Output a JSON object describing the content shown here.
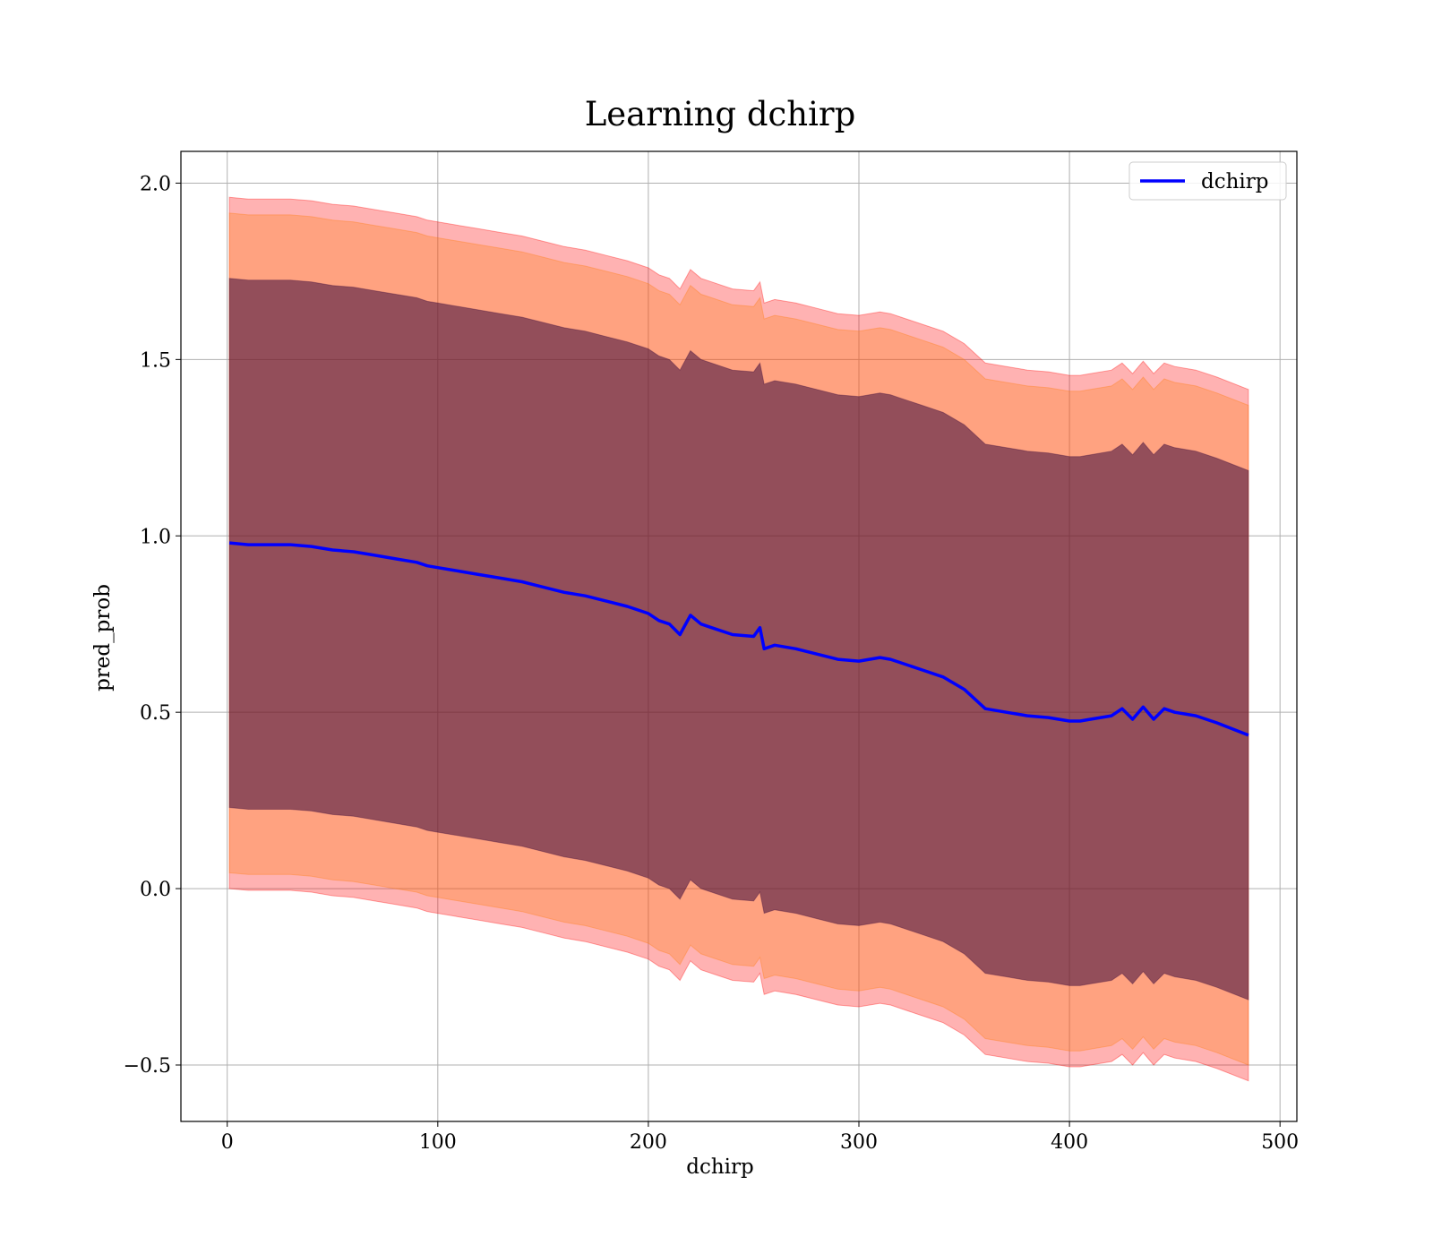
{
  "chart_data": {
    "type": "line",
    "title": "Learning dchirp",
    "xlabel": "dchirp",
    "ylabel": "pred_prob",
    "xlim": [
      -22,
      508
    ],
    "ylim": [
      -0.66,
      2.09
    ],
    "xticks": [
      0,
      100,
      200,
      300,
      400,
      500
    ],
    "xtick_labels": [
      "0",
      "100",
      "200",
      "300",
      "400",
      "500"
    ],
    "yticks": [
      -0.5,
      0.0,
      0.5,
      1.0,
      1.5,
      2.0
    ],
    "ytick_labels": [
      "−0.5",
      "0.0",
      "0.5",
      "1.0",
      "1.5",
      "2.0"
    ],
    "grid": true,
    "legend_position": "top-right",
    "series": [
      {
        "name": "dchirp",
        "color": "#0000ff",
        "x": [
          1,
          10,
          20,
          30,
          40,
          50,
          60,
          70,
          80,
          90,
          95,
          100,
          110,
          120,
          130,
          140,
          150,
          160,
          170,
          180,
          190,
          200,
          205,
          210,
          215,
          220,
          225,
          230,
          240,
          250,
          253,
          255,
          260,
          270,
          280,
          290,
          300,
          310,
          315,
          320,
          330,
          340,
          350,
          360,
          370,
          380,
          390,
          400,
          405,
          410,
          420,
          425,
          430,
          435,
          440,
          445,
          450,
          460,
          470,
          485
        ],
        "y": [
          0.98,
          0.975,
          0.975,
          0.975,
          0.97,
          0.96,
          0.955,
          0.945,
          0.935,
          0.925,
          0.915,
          0.91,
          0.9,
          0.89,
          0.88,
          0.87,
          0.855,
          0.84,
          0.83,
          0.815,
          0.8,
          0.78,
          0.76,
          0.75,
          0.72,
          0.775,
          0.75,
          0.74,
          0.72,
          0.715,
          0.74,
          0.68,
          0.69,
          0.68,
          0.665,
          0.65,
          0.645,
          0.655,
          0.65,
          0.64,
          0.62,
          0.6,
          0.565,
          0.51,
          0.5,
          0.49,
          0.485,
          0.475,
          0.475,
          0.48,
          0.49,
          0.51,
          0.48,
          0.515,
          0.48,
          0.51,
          0.5,
          0.49,
          0.47,
          0.435
        ]
      }
    ],
    "bands": [
      {
        "color": "#ff0000",
        "opacity": 0.3,
        "x": [
          1,
          10,
          20,
          30,
          40,
          50,
          60,
          70,
          80,
          90,
          95,
          100,
          110,
          120,
          130,
          140,
          150,
          160,
          170,
          180,
          190,
          200,
          205,
          210,
          215,
          220,
          225,
          230,
          240,
          250,
          253,
          255,
          260,
          270,
          280,
          290,
          300,
          310,
          315,
          320,
          330,
          340,
          350,
          360,
          370,
          380,
          390,
          400,
          405,
          410,
          420,
          425,
          430,
          435,
          440,
          445,
          450,
          460,
          470,
          485
        ],
        "upper": [
          1.96,
          1.955,
          1.955,
          1.955,
          1.95,
          1.94,
          1.935,
          1.925,
          1.915,
          1.905,
          1.895,
          1.89,
          1.88,
          1.87,
          1.86,
          1.85,
          1.835,
          1.82,
          1.81,
          1.795,
          1.78,
          1.76,
          1.74,
          1.73,
          1.7,
          1.755,
          1.73,
          1.72,
          1.7,
          1.695,
          1.72,
          1.66,
          1.67,
          1.66,
          1.645,
          1.63,
          1.625,
          1.635,
          1.63,
          1.62,
          1.6,
          1.58,
          1.545,
          1.49,
          1.48,
          1.47,
          1.465,
          1.455,
          1.455,
          1.46,
          1.47,
          1.49,
          1.46,
          1.495,
          1.46,
          1.49,
          1.48,
          1.47,
          1.45,
          1.415
        ],
        "lower": [
          0.0,
          -0.005,
          -0.005,
          -0.005,
          -0.01,
          -0.02,
          -0.025,
          -0.035,
          -0.045,
          -0.055,
          -0.065,
          -0.07,
          -0.08,
          -0.09,
          -0.1,
          -0.11,
          -0.125,
          -0.14,
          -0.15,
          -0.165,
          -0.18,
          -0.2,
          -0.22,
          -0.23,
          -0.26,
          -0.205,
          -0.23,
          -0.24,
          -0.26,
          -0.265,
          -0.24,
          -0.3,
          -0.29,
          -0.3,
          -0.315,
          -0.33,
          -0.335,
          -0.325,
          -0.33,
          -0.34,
          -0.36,
          -0.38,
          -0.415,
          -0.47,
          -0.48,
          -0.49,
          -0.495,
          -0.505,
          -0.505,
          -0.5,
          -0.49,
          -0.47,
          -0.5,
          -0.465,
          -0.5,
          -0.47,
          -0.48,
          -0.49,
          -0.51,
          -0.545
        ]
      },
      {
        "color": "#ff7f0e",
        "opacity": 0.3,
        "x": [
          1,
          10,
          20,
          30,
          40,
          50,
          60,
          70,
          80,
          90,
          95,
          100,
          110,
          120,
          130,
          140,
          150,
          160,
          170,
          180,
          190,
          200,
          205,
          210,
          215,
          220,
          225,
          230,
          240,
          250,
          253,
          255,
          260,
          270,
          280,
          290,
          300,
          310,
          315,
          320,
          330,
          340,
          350,
          360,
          370,
          380,
          390,
          400,
          405,
          410,
          420,
          425,
          430,
          435,
          440,
          445,
          450,
          460,
          470,
          485
        ],
        "upper": [
          1.915,
          1.91,
          1.91,
          1.91,
          1.905,
          1.895,
          1.89,
          1.88,
          1.87,
          1.86,
          1.85,
          1.845,
          1.835,
          1.825,
          1.815,
          1.805,
          1.79,
          1.775,
          1.765,
          1.75,
          1.735,
          1.715,
          1.695,
          1.685,
          1.655,
          1.71,
          1.685,
          1.675,
          1.655,
          1.65,
          1.675,
          1.615,
          1.625,
          1.615,
          1.6,
          1.585,
          1.58,
          1.59,
          1.585,
          1.575,
          1.555,
          1.535,
          1.5,
          1.445,
          1.435,
          1.425,
          1.42,
          1.41,
          1.41,
          1.415,
          1.425,
          1.445,
          1.415,
          1.45,
          1.415,
          1.445,
          1.435,
          1.425,
          1.405,
          1.37
        ],
        "lower": [
          0.045,
          0.04,
          0.04,
          0.04,
          0.035,
          0.025,
          0.02,
          0.01,
          0.0,
          -0.01,
          -0.02,
          -0.025,
          -0.035,
          -0.045,
          -0.055,
          -0.065,
          -0.08,
          -0.095,
          -0.105,
          -0.12,
          -0.135,
          -0.155,
          -0.175,
          -0.185,
          -0.215,
          -0.16,
          -0.185,
          -0.195,
          -0.215,
          -0.22,
          -0.195,
          -0.255,
          -0.245,
          -0.255,
          -0.27,
          -0.285,
          -0.29,
          -0.28,
          -0.285,
          -0.295,
          -0.315,
          -0.335,
          -0.37,
          -0.425,
          -0.435,
          -0.445,
          -0.45,
          -0.46,
          -0.46,
          -0.455,
          -0.445,
          -0.425,
          -0.455,
          -0.42,
          -0.455,
          -0.425,
          -0.435,
          -0.445,
          -0.465,
          -0.5
        ]
      },
      {
        "color": "#3a0a3a",
        "opacity": 0.55,
        "x": [
          1,
          10,
          20,
          30,
          40,
          50,
          60,
          70,
          80,
          90,
          95,
          100,
          110,
          120,
          130,
          140,
          150,
          160,
          170,
          180,
          190,
          200,
          205,
          210,
          215,
          220,
          225,
          230,
          240,
          250,
          253,
          255,
          260,
          270,
          280,
          290,
          300,
          310,
          315,
          320,
          330,
          340,
          350,
          360,
          370,
          380,
          390,
          400,
          405,
          410,
          420,
          425,
          430,
          435,
          440,
          445,
          450,
          460,
          470,
          485
        ],
        "upper": [
          1.73,
          1.725,
          1.725,
          1.725,
          1.72,
          1.71,
          1.705,
          1.695,
          1.685,
          1.675,
          1.665,
          1.66,
          1.65,
          1.64,
          1.63,
          1.62,
          1.605,
          1.59,
          1.58,
          1.565,
          1.55,
          1.53,
          1.51,
          1.5,
          1.47,
          1.525,
          1.5,
          1.49,
          1.47,
          1.465,
          1.49,
          1.43,
          1.44,
          1.43,
          1.415,
          1.4,
          1.395,
          1.405,
          1.4,
          1.39,
          1.37,
          1.35,
          1.315,
          1.26,
          1.25,
          1.24,
          1.235,
          1.225,
          1.225,
          1.23,
          1.24,
          1.26,
          1.23,
          1.265,
          1.23,
          1.26,
          1.25,
          1.24,
          1.22,
          1.185
        ],
        "lower": [
          0.23,
          0.225,
          0.225,
          0.225,
          0.22,
          0.21,
          0.205,
          0.195,
          0.185,
          0.175,
          0.165,
          0.16,
          0.15,
          0.14,
          0.13,
          0.12,
          0.105,
          0.09,
          0.08,
          0.065,
          0.05,
          0.03,
          0.01,
          0.0,
          -0.03,
          0.025,
          0.0,
          -0.01,
          -0.03,
          -0.035,
          -0.01,
          -0.07,
          -0.06,
          -0.07,
          -0.085,
          -0.1,
          -0.105,
          -0.095,
          -0.1,
          -0.11,
          -0.13,
          -0.15,
          -0.185,
          -0.24,
          -0.25,
          -0.26,
          -0.265,
          -0.275,
          -0.275,
          -0.27,
          -0.26,
          -0.24,
          -0.27,
          -0.235,
          -0.27,
          -0.24,
          -0.25,
          -0.26,
          -0.28,
          -0.315
        ]
      }
    ]
  }
}
